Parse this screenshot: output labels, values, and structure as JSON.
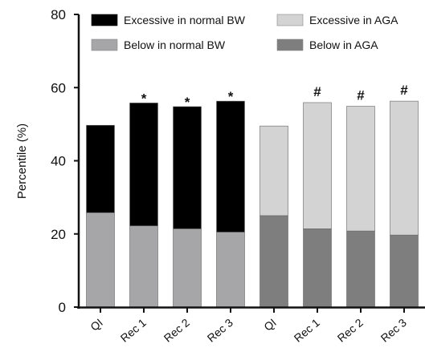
{
  "chart_data": {
    "type": "bar",
    "stacked": true,
    "ylabel": "Percentile (%)",
    "ylim": [
      0,
      80
    ],
    "yticks": [
      0,
      20,
      40,
      60,
      80
    ],
    "categories": [
      "QI",
      "Rec 1",
      "Rec 2",
      "Rec 3",
      "QI",
      "Rec 1",
      "Rec 2",
      "Rec 3"
    ],
    "series": [
      {
        "name": "Below in normal BW",
        "color": "#a6a6a9",
        "values": [
          25.8,
          22.2,
          21.4,
          20.5,
          null,
          null,
          null,
          null
        ]
      },
      {
        "name": "Excessive in normal BW",
        "color": "#000000",
        "values": [
          23.9,
          33.6,
          33.4,
          35.8,
          null,
          null,
          null,
          null
        ]
      },
      {
        "name": "Below in AGA",
        "color": "#7e7e7e",
        "values": [
          null,
          null,
          null,
          null,
          25.0,
          21.4,
          20.8,
          19.7
        ]
      },
      {
        "name": "Excessive in AGA",
        "color": "#d3d3d3",
        "values": [
          null,
          null,
          null,
          null,
          24.5,
          34.5,
          34.1,
          36.6
        ]
      }
    ],
    "markers": [
      "",
      "*",
      "*",
      "*",
      "",
      "#",
      "#",
      "#"
    ],
    "legend": {
      "placement": "top",
      "entries": [
        {
          "label": "Excessive in normal BW",
          "color": "#000000"
        },
        {
          "label": "Excessive in AGA",
          "color": "#d3d3d3"
        },
        {
          "label": "Below in normal BW",
          "color": "#a6a6a9"
        },
        {
          "label": "Below in AGA",
          "color": "#7e7e7e"
        }
      ]
    }
  }
}
